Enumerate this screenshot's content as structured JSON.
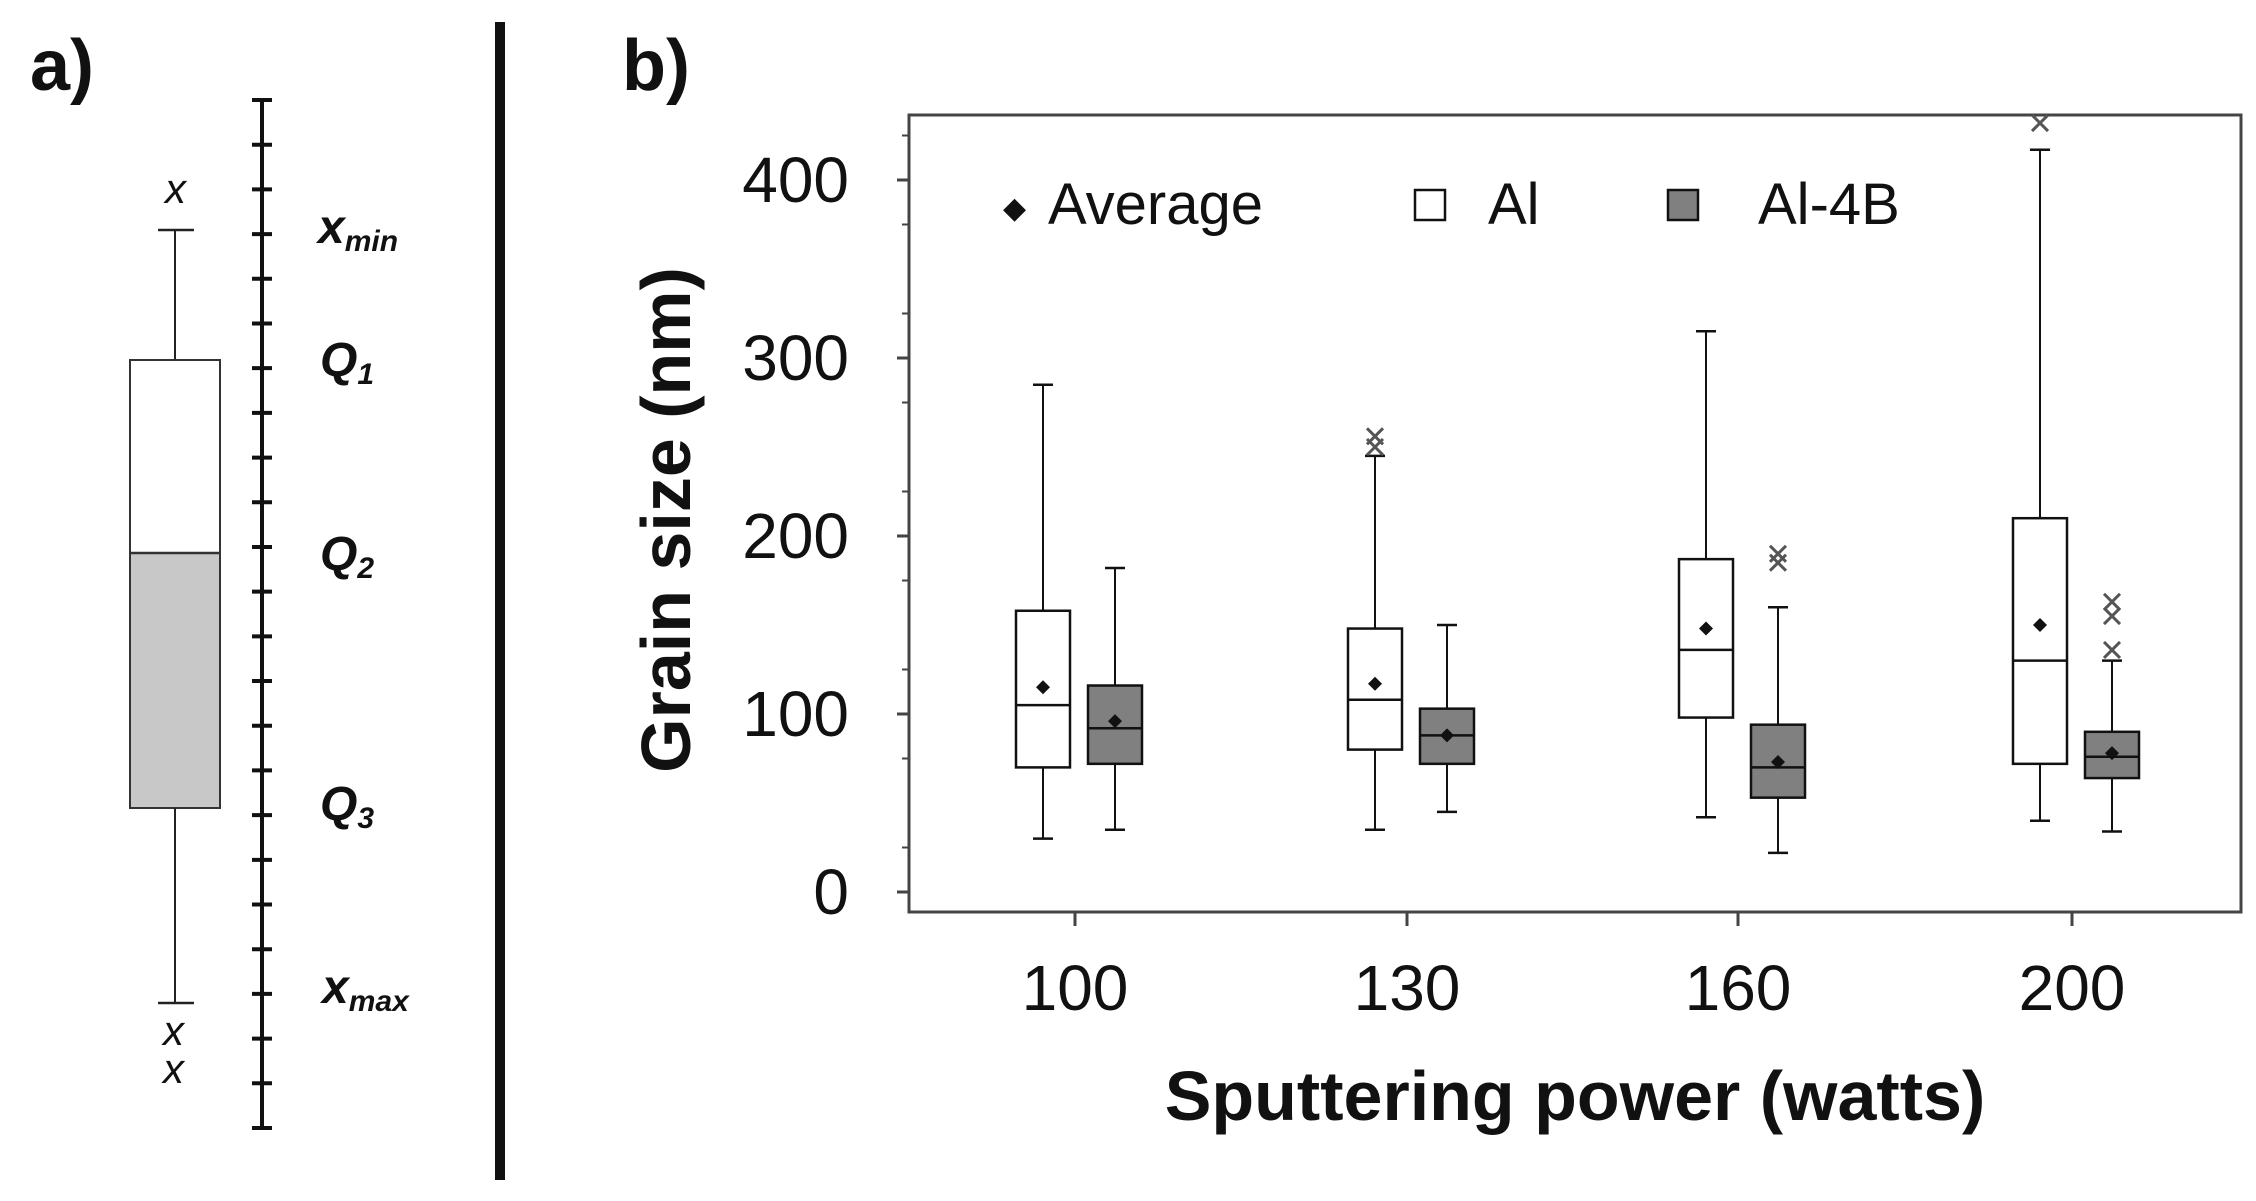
{
  "panel_a": {
    "label": "a)",
    "outlier_mark": "x",
    "labels": {
      "xmin": {
        "main": "x",
        "sub": "min"
      },
      "q1": {
        "main": "Q",
        "sub": "1"
      },
      "q2": {
        "main": "Q",
        "sub": "2"
      },
      "q3": {
        "main": "Q",
        "sub": "3"
      },
      "xmax": {
        "main": "x",
        "sub": "max"
      }
    },
    "colors": {
      "upper_box": "#ffffff",
      "lower_box": "#c8c8c8"
    }
  },
  "panel_b": {
    "label": "b)"
  },
  "chart_data": {
    "type": "box",
    "title": "",
    "xlabel": "Sputtering power (watts)",
    "ylabel": "Grain size (nm)",
    "ylim": [
      0,
      450
    ],
    "yticks": [
      0,
      100,
      200,
      300,
      400
    ],
    "categories": [
      "100",
      "130",
      "160",
      "200"
    ],
    "legend": {
      "position": "top",
      "average_label": "Average",
      "average_marker": "◆"
    },
    "series": [
      {
        "name": "Al",
        "color": "#ffffff",
        "boxes": [
          {
            "whisker_low": 30,
            "q1": 70,
            "median": 105,
            "q3": 158,
            "whisker_high": 285,
            "mean": 115,
            "outliers": []
          },
          {
            "whisker_low": 35,
            "q1": 80,
            "median": 108,
            "q3": 148,
            "whisker_high": 245,
            "mean": 117,
            "outliers": [
              250,
              256
            ]
          },
          {
            "whisker_low": 42,
            "q1": 98,
            "median": 136,
            "q3": 187,
            "whisker_high": 315,
            "mean": 148,
            "outliers": []
          },
          {
            "whisker_low": 40,
            "q1": 72,
            "median": 130,
            "q3": 210,
            "whisker_high": 417,
            "mean": 150,
            "outliers": [
              432
            ]
          }
        ]
      },
      {
        "name": "Al-4B",
        "color": "#808080",
        "boxes": [
          {
            "whisker_low": 35,
            "q1": 72,
            "median": 92,
            "q3": 116,
            "whisker_high": 182,
            "mean": 96,
            "outliers": []
          },
          {
            "whisker_low": 45,
            "q1": 72,
            "median": 88,
            "q3": 103,
            "whisker_high": 150,
            "mean": 88,
            "outliers": []
          },
          {
            "whisker_low": 22,
            "q1": 53,
            "median": 70,
            "q3": 94,
            "whisker_high": 160,
            "mean": 73,
            "outliers": [
              185,
              190
            ]
          },
          {
            "whisker_low": 34,
            "q1": 64,
            "median": 76,
            "q3": 90,
            "whisker_high": 130,
            "mean": 78,
            "outliers": [
              136,
              155,
              163
            ]
          }
        ]
      }
    ]
  }
}
